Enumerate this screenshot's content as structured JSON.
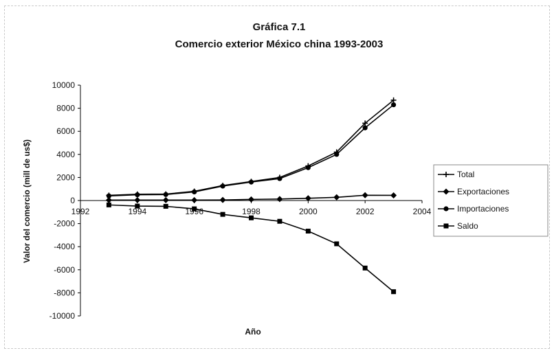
{
  "chart_data": {
    "type": "line",
    "title": "Gráfica 7.1",
    "subtitle": "Comercio exterior México china 1993-2003",
    "xlabel": "Año",
    "ylabel": "Valor del comercio (mill de us$)",
    "xlim": [
      1992,
      2004
    ],
    "ylim": [
      -10000,
      10000
    ],
    "x_ticks": [
      "1992",
      "1994",
      "1996",
      "1998",
      "2000",
      "2002",
      "2004"
    ],
    "y_ticks": [
      "10000",
      "8000",
      "6000",
      "4000",
      "2000",
      "0",
      "-2000",
      "-4000",
      "-6000",
      "-8000",
      "-10000"
    ],
    "grid": false,
    "legend_position": "right",
    "x": [
      1993,
      1994,
      1995,
      1996,
      1997,
      1998,
      1999,
      2000,
      2001,
      2002,
      2003
    ],
    "series": [
      {
        "name": "Total",
        "marker": "plus",
        "values": [
          450,
          550,
          560,
          800,
          1300,
          1650,
          2000,
          3000,
          4200,
          6700,
          8700
        ]
      },
      {
        "name": "Exportaciones",
        "marker": "diamond",
        "values": [
          40,
          40,
          40,
          40,
          50,
          100,
          130,
          200,
          280,
          460,
          450
        ]
      },
      {
        "name": "Importaciones",
        "marker": "circle",
        "values": [
          400,
          500,
          520,
          750,
          1250,
          1600,
          1900,
          2850,
          4000,
          6300,
          8300
        ]
      },
      {
        "name": "Saldo",
        "marker": "square",
        "values": [
          -380,
          -480,
          -500,
          -720,
          -1200,
          -1500,
          -1800,
          -2650,
          -3750,
          -5850,
          -7900
        ]
      }
    ]
  }
}
